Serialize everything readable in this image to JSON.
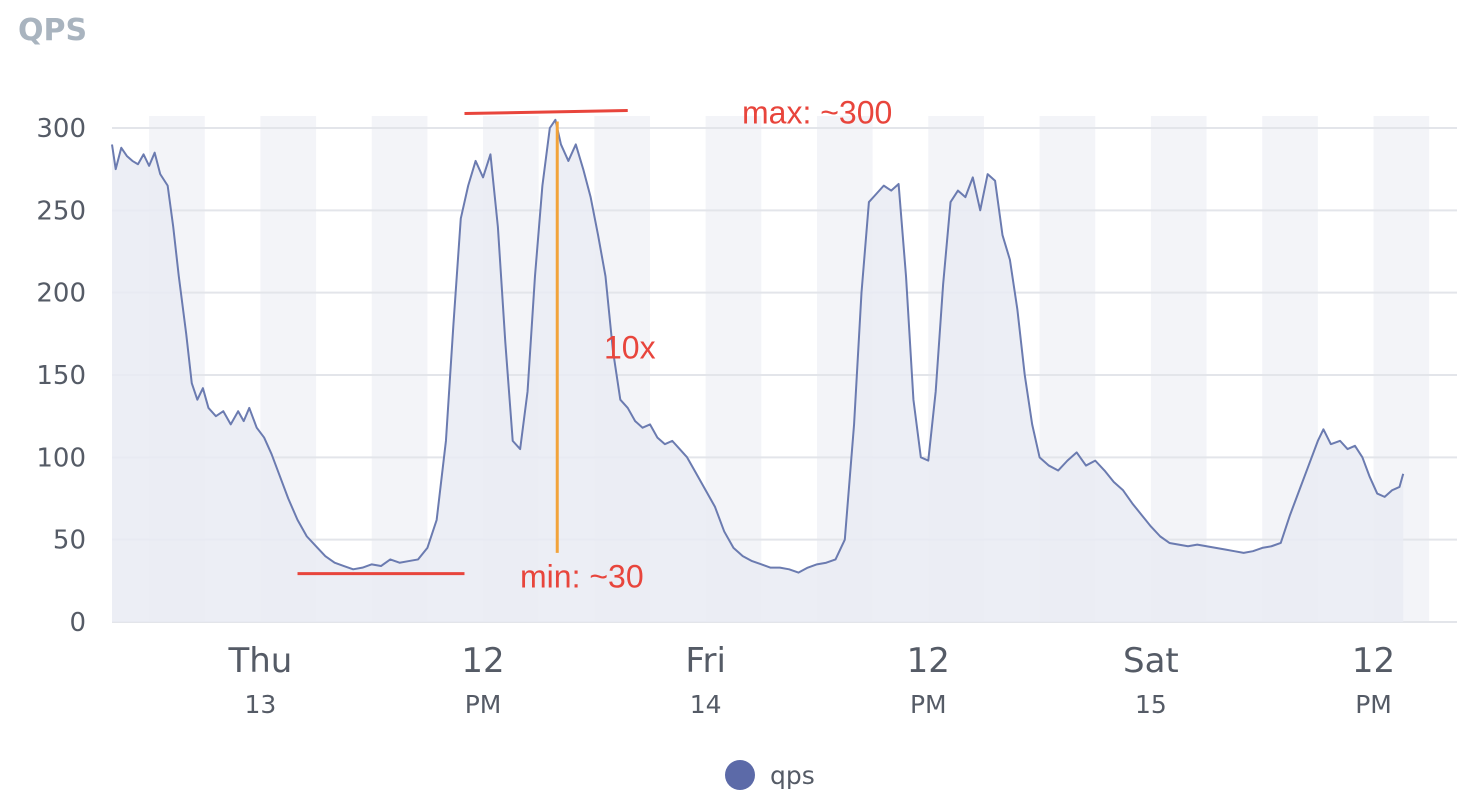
{
  "chart_data": {
    "type": "area",
    "title": "QPS",
    "ylim": [
      0,
      300
    ],
    "yticks": [
      0,
      50,
      100,
      150,
      200,
      250,
      300
    ],
    "xlim": [
      4,
      76.5
    ],
    "xticks": [
      {
        "x": 12,
        "main": "Thu",
        "sub": "13"
      },
      {
        "x": 24,
        "main": "12",
        "sub": "PM"
      },
      {
        "x": 36,
        "main": "Fri",
        "sub": "14"
      },
      {
        "x": 48,
        "main": "12",
        "sub": "PM"
      },
      {
        "x": 60,
        "main": "Sat",
        "sub": "15"
      },
      {
        "x": 72,
        "main": "12",
        "sub": "PM"
      }
    ],
    "x_unit": "hours from Thu 13 00:00",
    "grid": true,
    "legend": {
      "position": "bottom-center",
      "label": "qps"
    },
    "series": [
      {
        "name": "qps",
        "color": "#6b7bb0",
        "points": [
          [
            4.0,
            290
          ],
          [
            4.2,
            275
          ],
          [
            4.5,
            288
          ],
          [
            4.8,
            283
          ],
          [
            5.1,
            280
          ],
          [
            5.4,
            278
          ],
          [
            5.7,
            284
          ],
          [
            6.0,
            277
          ],
          [
            6.3,
            285
          ],
          [
            6.6,
            272
          ],
          [
            7.0,
            265
          ],
          [
            7.3,
            240
          ],
          [
            7.6,
            210
          ],
          [
            8.0,
            175
          ],
          [
            8.3,
            145
          ],
          [
            8.6,
            135
          ],
          [
            8.9,
            142
          ],
          [
            9.2,
            130
          ],
          [
            9.6,
            125
          ],
          [
            10.0,
            128
          ],
          [
            10.4,
            120
          ],
          [
            10.8,
            128
          ],
          [
            11.1,
            122
          ],
          [
            11.4,
            130
          ],
          [
            11.8,
            118
          ],
          [
            12.2,
            112
          ],
          [
            12.6,
            102
          ],
          [
            13.0,
            90
          ],
          [
            13.5,
            75
          ],
          [
            14.0,
            62
          ],
          [
            14.5,
            52
          ],
          [
            15.0,
            46
          ],
          [
            15.5,
            40
          ],
          [
            16.0,
            36
          ],
          [
            16.5,
            34
          ],
          [
            17.0,
            32
          ],
          [
            17.5,
            33
          ],
          [
            18.0,
            35
          ],
          [
            18.5,
            34
          ],
          [
            19.0,
            38
          ],
          [
            19.5,
            36
          ],
          [
            20.0,
            37
          ],
          [
            20.5,
            38
          ],
          [
            21.0,
            45
          ],
          [
            21.5,
            62
          ],
          [
            22.0,
            110
          ],
          [
            22.4,
            180
          ],
          [
            22.8,
            245
          ],
          [
            23.2,
            265
          ],
          [
            23.6,
            280
          ],
          [
            24.0,
            270
          ],
          [
            24.4,
            284
          ],
          [
            24.8,
            240
          ],
          [
            25.2,
            170
          ],
          [
            25.6,
            110
          ],
          [
            26.0,
            105
          ],
          [
            26.4,
            140
          ],
          [
            26.8,
            210
          ],
          [
            27.2,
            265
          ],
          [
            27.6,
            300
          ],
          [
            27.9,
            305
          ],
          [
            28.2,
            290
          ],
          [
            28.6,
            280
          ],
          [
            29.0,
            290
          ],
          [
            29.4,
            275
          ],
          [
            29.8,
            258
          ],
          [
            30.2,
            235
          ],
          [
            30.6,
            210
          ],
          [
            31.0,
            165
          ],
          [
            31.4,
            135
          ],
          [
            31.8,
            130
          ],
          [
            32.2,
            122
          ],
          [
            32.6,
            118
          ],
          [
            33.0,
            120
          ],
          [
            33.4,
            112
          ],
          [
            33.8,
            108
          ],
          [
            34.2,
            110
          ],
          [
            34.6,
            105
          ],
          [
            35.0,
            100
          ],
          [
            35.5,
            90
          ],
          [
            36.0,
            80
          ],
          [
            36.5,
            70
          ],
          [
            37.0,
            55
          ],
          [
            37.5,
            45
          ],
          [
            38.0,
            40
          ],
          [
            38.5,
            37
          ],
          [
            39.0,
            35
          ],
          [
            39.5,
            33
          ],
          [
            40.0,
            33
          ],
          [
            40.5,
            32
          ],
          [
            41.0,
            30
          ],
          [
            41.5,
            33
          ],
          [
            42.0,
            35
          ],
          [
            42.5,
            36
          ],
          [
            43.0,
            38
          ],
          [
            43.5,
            50
          ],
          [
            44.0,
            120
          ],
          [
            44.4,
            200
          ],
          [
            44.8,
            255
          ],
          [
            45.2,
            260
          ],
          [
            45.6,
            265
          ],
          [
            46.0,
            262
          ],
          [
            46.4,
            266
          ],
          [
            46.8,
            210
          ],
          [
            47.2,
            135
          ],
          [
            47.6,
            100
          ],
          [
            48.0,
            98
          ],
          [
            48.4,
            140
          ],
          [
            48.8,
            205
          ],
          [
            49.2,
            255
          ],
          [
            49.6,
            262
          ],
          [
            50.0,
            258
          ],
          [
            50.4,
            270
          ],
          [
            50.8,
            250
          ],
          [
            51.2,
            272
          ],
          [
            51.6,
            268
          ],
          [
            52.0,
            235
          ],
          [
            52.4,
            220
          ],
          [
            52.8,
            190
          ],
          [
            53.2,
            150
          ],
          [
            53.6,
            120
          ],
          [
            54.0,
            100
          ],
          [
            54.5,
            95
          ],
          [
            55.0,
            92
          ],
          [
            55.5,
            98
          ],
          [
            56.0,
            103
          ],
          [
            56.5,
            95
          ],
          [
            57.0,
            98
          ],
          [
            57.5,
            92
          ],
          [
            58.0,
            85
          ],
          [
            58.5,
            80
          ],
          [
            59.0,
            72
          ],
          [
            59.5,
            65
          ],
          [
            60.0,
            58
          ],
          [
            60.5,
            52
          ],
          [
            61.0,
            48
          ],
          [
            61.5,
            47
          ],
          [
            62.0,
            46
          ],
          [
            62.5,
            47
          ],
          [
            63.0,
            46
          ],
          [
            63.5,
            45
          ],
          [
            64.0,
            44
          ],
          [
            64.5,
            43
          ],
          [
            65.0,
            42
          ],
          [
            65.5,
            43
          ],
          [
            66.0,
            45
          ],
          [
            66.5,
            46
          ],
          [
            67.0,
            48
          ],
          [
            67.5,
            65
          ],
          [
            68.0,
            80
          ],
          [
            68.5,
            95
          ],
          [
            69.0,
            110
          ],
          [
            69.3,
            117
          ],
          [
            69.7,
            108
          ],
          [
            70.2,
            110
          ],
          [
            70.6,
            105
          ],
          [
            71.0,
            107
          ],
          [
            71.4,
            100
          ],
          [
            71.8,
            88
          ],
          [
            72.2,
            78
          ],
          [
            72.6,
            76
          ],
          [
            73.0,
            80
          ],
          [
            73.4,
            82
          ],
          [
            73.6,
            90
          ]
        ]
      }
    ],
    "annotations": {
      "max_label": "max: ~300",
      "min_label": "min: ~30",
      "ratio_label": "10x",
      "max_value": 310,
      "min_value": 30,
      "peak_x": 28.0,
      "max_line_x": [
        23.0,
        31.8
      ],
      "min_line_x": [
        14.0,
        23.0
      ],
      "color": "#e8453c",
      "ratio_line_color": "#f2a33a"
    },
    "colors": {
      "line": "#6b7bb0",
      "fill": "#e9ebf3",
      "band": "#f3f4f8",
      "grid": "#e3e5ea",
      "axis_text": "#555b66",
      "title": "#a9b4bf",
      "legend_dot": "#5c6aa8"
    }
  }
}
